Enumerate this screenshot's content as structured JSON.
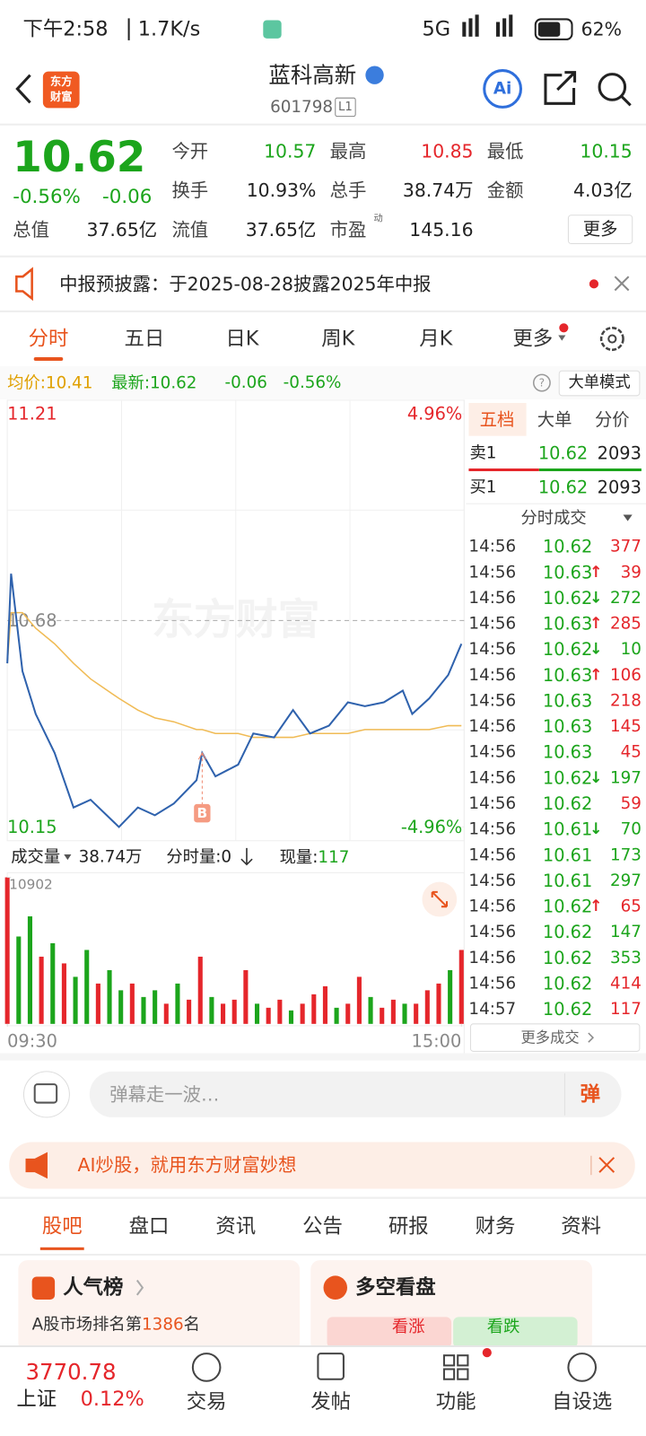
{
  "status_bar": {
    "time": "下午2:58",
    "speed": "1.7K/s",
    "network": "5G",
    "battery": "62%"
  },
  "header": {
    "logo": [
      "东方",
      "财富"
    ],
    "title": "蓝科高新",
    "code": "601798",
    "level": "L1"
  },
  "quote": {
    "price": "10.62",
    "change_pct": "-0.56%",
    "change": "-0.06",
    "fields": [
      {
        "label": "今开",
        "value": "10.57",
        "color": "green"
      },
      {
        "label": "最高",
        "value": "10.85",
        "color": "red"
      },
      {
        "label": "最低",
        "value": "10.15",
        "color": "green"
      },
      {
        "label": "换手",
        "value": "10.93%"
      },
      {
        "label": "总手",
        "value": "38.74万"
      },
      {
        "label": "金额",
        "value": "4.03亿"
      },
      {
        "label": "总值",
        "value": "37.65亿"
      },
      {
        "label": "流值",
        "value": "37.65亿"
      },
      {
        "label": "市盈",
        "value": "145.16",
        "badge": "动"
      }
    ],
    "more": "更多"
  },
  "notice": {
    "text": "中报预披露：于2025-08-28披露2025年中报"
  },
  "tabs": {
    "items": [
      "分时",
      "五日",
      "日K",
      "周K",
      "月K",
      "更多"
    ],
    "active": 0
  },
  "info_bar": {
    "avg_label": "均价:",
    "avg": "10.41",
    "last_label": "最新:",
    "last": "10.62",
    "change": "-0.06",
    "change_pct": "-0.56%",
    "mode": "大单模式"
  },
  "watermark": "东方财富",
  "price_chart": {
    "type": "line",
    "xlim": [
      0,
      240
    ],
    "ylim": [
      10.15,
      11.21
    ],
    "yticks": [
      11.21,
      10.68,
      10.15
    ],
    "y2lim": [
      -4.96,
      4.96
    ],
    "y2ticks": [
      {
        "value": 4.96,
        "label": "4.96%"
      },
      {
        "value": -4.96,
        "label": "-4.96%"
      }
    ],
    "x": [
      0,
      2,
      8,
      15,
      25,
      35,
      44,
      59,
      69,
      78,
      88,
      100,
      103,
      110,
      122,
      130,
      141,
      151,
      160,
      170,
      180,
      189,
      199,
      209,
      214,
      223,
      233,
      240
    ],
    "series": [
      {
        "color": "#2f62ad",
        "values": [
          10.57,
          10.8,
          10.55,
          10.44,
          10.34,
          10.2,
          10.22,
          10.15,
          10.2,
          10.18,
          10.21,
          10.27,
          10.34,
          10.28,
          10.31,
          10.39,
          10.38,
          10.45,
          10.39,
          10.41,
          10.47,
          10.46,
          10.47,
          10.5,
          10.44,
          10.48,
          10.54,
          10.62
        ]
      },
      {
        "color": "#f0bb55",
        "values": [
          10.57,
          10.7,
          10.7,
          10.66,
          10.62,
          10.57,
          10.53,
          10.48,
          10.45,
          10.43,
          10.42,
          10.4,
          10.4,
          10.39,
          10.39,
          10.38,
          10.38,
          10.38,
          10.39,
          10.39,
          10.39,
          10.4,
          10.4,
          10.4,
          10.4,
          10.4,
          10.41,
          10.41
        ]
      }
    ],
    "trade_marker": {
      "label": "B",
      "x": 103,
      "value": 10.34
    }
  },
  "volume_chart": {
    "type": "bar",
    "label": "成交量",
    "total": "38.74万",
    "tick_volume": "分时量:0",
    "now_label": "现量:",
    "now": "117",
    "xlim": [
      0,
      240
    ],
    "xticks": [
      {
        "value": 0,
        "label": "09:30"
      },
      {
        "value": 240,
        "label": "15:00"
      }
    ],
    "ylim": [
      0,
      10902
    ],
    "yticks": [
      10902
    ],
    "x": [
      0,
      6,
      12,
      18,
      24,
      30,
      36,
      42,
      48,
      54,
      60,
      66,
      72,
      78,
      84,
      90,
      96,
      102,
      108,
      114,
      120,
      126,
      132,
      138,
      144,
      150,
      156,
      162,
      168,
      174,
      180,
      186,
      192,
      198,
      204,
      210,
      216,
      222,
      228,
      234,
      240
    ],
    "values": [
      10902,
      6500,
      8000,
      5000,
      6000,
      4500,
      3500,
      5500,
      3000,
      4000,
      2500,
      3000,
      2000,
      2500,
      1500,
      3000,
      1800,
      5000,
      2000,
      1500,
      1800,
      4000,
      1500,
      1200,
      1800,
      1000,
      1500,
      2200,
      2800,
      1200,
      1500,
      3500,
      2000,
      1200,
      1800,
      1500,
      1500,
      2500,
      3000,
      4000,
      5500
    ],
    "colors": [
      "#e5262b",
      "#1ca51c",
      "#1ca51c",
      "#e5262b",
      "#1ca51c",
      "#e5262b",
      "#1ca51c",
      "#1ca51c",
      "#e5262b",
      "#1ca51c",
      "#1ca51c",
      "#e5262b",
      "#1ca51c",
      "#1ca51c",
      "#e5262b",
      "#1ca51c",
      "#e5262b",
      "#e5262b",
      "#1ca51c",
      "#e5262b",
      "#e5262b",
      "#e5262b",
      "#1ca51c",
      "#e5262b",
      "#e5262b",
      "#1ca51c",
      "#e5262b",
      "#e5262b",
      "#e5262b",
      "#1ca51c",
      "#e5262b",
      "#e5262b",
      "#1ca51c",
      "#e5262b",
      "#e5262b",
      "#1ca51c",
      "#e5262b",
      "#e5262b",
      "#e5262b",
      "#1ca51c",
      "#e5262b"
    ]
  },
  "order_book": {
    "tabs": [
      "五档",
      "大单",
      "分价"
    ],
    "active": 0,
    "ask": {
      "label": "卖1",
      "price": "10.62",
      "volume": "2093"
    },
    "bid": {
      "label": "买1",
      "price": "10.62",
      "volume": "2093"
    },
    "trades_title": "分时成交",
    "trades": [
      {
        "time": "14:56",
        "price": "10.62",
        "volume": "377",
        "side": "buy"
      },
      {
        "time": "14:56",
        "price": "10.63",
        "arrow": "↑",
        "volume": "39",
        "side": "buy"
      },
      {
        "time": "14:56",
        "price": "10.62",
        "arrow": "↓",
        "volume": "272",
        "side": "sell"
      },
      {
        "time": "14:56",
        "price": "10.63",
        "arrow": "↑",
        "volume": "285",
        "side": "buy"
      },
      {
        "time": "14:56",
        "price": "10.62",
        "arrow": "↓",
        "volume": "10",
        "side": "sell"
      },
      {
        "time": "14:56",
        "price": "10.63",
        "arrow": "↑",
        "volume": "106",
        "side": "buy"
      },
      {
        "time": "14:56",
        "price": "10.63",
        "volume": "218",
        "side": "buy"
      },
      {
        "time": "14:56",
        "price": "10.63",
        "volume": "145",
        "side": "buy"
      },
      {
        "time": "14:56",
        "price": "10.63",
        "volume": "45",
        "side": "buy"
      },
      {
        "time": "14:56",
        "price": "10.62",
        "arrow": "↓",
        "volume": "197",
        "side": "sell"
      },
      {
        "time": "14:56",
        "price": "10.62",
        "volume": "59",
        "side": "buy"
      },
      {
        "time": "14:56",
        "price": "10.61",
        "arrow": "↓",
        "volume": "70",
        "side": "sell"
      },
      {
        "time": "14:56",
        "price": "10.61",
        "volume": "173",
        "side": "sell"
      },
      {
        "time": "14:56",
        "price": "10.61",
        "volume": "297",
        "side": "sell"
      },
      {
        "time": "14:56",
        "price": "10.62",
        "arrow": "↑",
        "volume": "65",
        "side": "buy"
      },
      {
        "time": "14:56",
        "price": "10.62",
        "volume": "147",
        "side": "sell"
      },
      {
        "time": "14:56",
        "price": "10.62",
        "volume": "353",
        "side": "sell"
      },
      {
        "time": "14:56",
        "price": "10.62",
        "volume": "414",
        "side": "buy"
      },
      {
        "time": "14:57",
        "price": "10.62",
        "volume": "117",
        "side": "buy"
      }
    ],
    "more": "更多成交"
  },
  "comment": {
    "placeholder": "弹幕走一波…",
    "button": "弹"
  },
  "banner": {
    "text": "AI炒股，就用东方财富妙想"
  },
  "section_tabs": {
    "items": [
      "股吧",
      "盘口",
      "资讯",
      "公告",
      "研报",
      "财务",
      "资料"
    ],
    "active": 0
  },
  "cards": {
    "popularity": {
      "title": "人气榜",
      "text": "A股市场排名第",
      "rank": "1386",
      "suffix": "名"
    },
    "sentiment": {
      "title": "多空看盘",
      "bull": "看涨",
      "bear": "看跌"
    }
  },
  "bottom_nav": {
    "index": {
      "value": "3770.78",
      "name": "上证",
      "change": "0.12%"
    },
    "items": [
      "交易",
      "发帖",
      "功能",
      "自设选"
    ]
  }
}
